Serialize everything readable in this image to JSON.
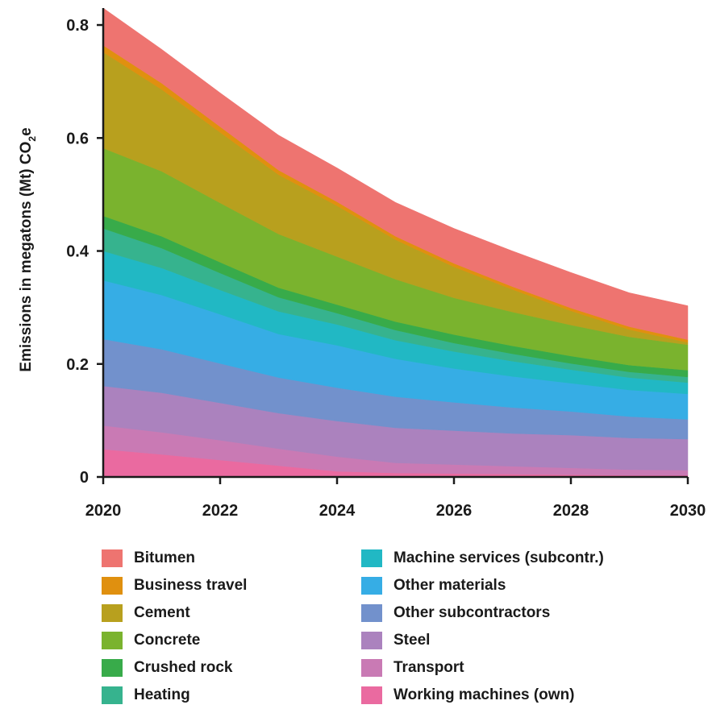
{
  "chart_data": {
    "type": "area",
    "stacked": true,
    "ylabel_main": "Emissions in megatons (Mt) CO",
    "ylabel_sub": "2",
    "ylabel_tail": "e",
    "ylim": [
      0,
      0.83
    ],
    "xlim": [
      2020,
      2030
    ],
    "x_ticks": [
      "2020",
      "2022",
      "2024",
      "2026",
      "2028",
      "2030"
    ],
    "y_ticks": [
      {
        "value": 0,
        "label": "0"
      },
      {
        "value": 0.2,
        "label": "0.2"
      },
      {
        "value": 0.4,
        "label": "0.4"
      },
      {
        "value": 0.6,
        "label": "0.6"
      },
      {
        "value": 0.8,
        "label": "0.8"
      }
    ],
    "grid": false,
    "legend_position": "bottom",
    "x": [
      2020,
      2021,
      2022,
      2023,
      2024,
      2025,
      2026,
      2027,
      2028,
      2029,
      2030
    ],
    "series": [
      {
        "name": "Working machines (own)",
        "color": "#ea6aa0",
        "values": [
          0.049,
          0.04,
          0.03,
          0.02,
          0.01,
          0.007,
          0.006,
          0.005,
          0.004,
          0.003,
          0.003
        ]
      },
      {
        "name": "Transport",
        "color": "#c97ab4",
        "values": [
          0.042,
          0.039,
          0.035,
          0.03,
          0.026,
          0.018,
          0.016,
          0.014,
          0.012,
          0.01,
          0.009
        ]
      },
      {
        "name": "Steel",
        "color": "#ab82be",
        "values": [
          0.07,
          0.07,
          0.066,
          0.063,
          0.063,
          0.062,
          0.06,
          0.058,
          0.058,
          0.056,
          0.055
        ]
      },
      {
        "name": "Other subcontractors",
        "color": "#7291cc",
        "values": [
          0.083,
          0.077,
          0.07,
          0.063,
          0.059,
          0.055,
          0.05,
          0.046,
          0.042,
          0.038,
          0.035
        ]
      },
      {
        "name": "Other materials",
        "color": "#36ade5",
        "values": [
          0.104,
          0.096,
          0.087,
          0.077,
          0.075,
          0.067,
          0.06,
          0.055,
          0.05,
          0.047,
          0.045
        ]
      },
      {
        "name": "Machine services (subcontr.)",
        "color": "#21b8c4",
        "values": [
          0.052,
          0.048,
          0.043,
          0.04,
          0.037,
          0.033,
          0.03,
          0.027,
          0.024,
          0.022,
          0.02
        ]
      },
      {
        "name": "Heating",
        "color": "#36b38e",
        "values": [
          0.04,
          0.035,
          0.03,
          0.025,
          0.02,
          0.018,
          0.015,
          0.013,
          0.011,
          0.01,
          0.01
        ]
      },
      {
        "name": "Crushed rock",
        "color": "#38ab4a",
        "values": [
          0.022,
          0.021,
          0.019,
          0.017,
          0.015,
          0.015,
          0.015,
          0.014,
          0.013,
          0.012,
          0.012
        ]
      },
      {
        "name": "Concrete",
        "color": "#7ab32e",
        "values": [
          0.12,
          0.115,
          0.105,
          0.095,
          0.085,
          0.075,
          0.065,
          0.06,
          0.055,
          0.05,
          0.045
        ]
      },
      {
        "name": "Cement",
        "color": "#b8a01e",
        "values": [
          0.17,
          0.145,
          0.125,
          0.105,
          0.09,
          0.07,
          0.055,
          0.04,
          0.025,
          0.013,
          0.004
        ]
      },
      {
        "name": "Business travel",
        "color": "#e0900f",
        "values": [
          0.012,
          0.011,
          0.01,
          0.008,
          0.007,
          0.006,
          0.006,
          0.005,
          0.005,
          0.005,
          0.005
        ]
      },
      {
        "name": "Bitumen",
        "color": "#ee7470",
        "values": [
          0.066,
          0.06,
          0.06,
          0.062,
          0.06,
          0.06,
          0.062,
          0.063,
          0.063,
          0.06,
          0.06
        ]
      }
    ],
    "legend_columns": [
      [
        "Bitumen",
        "Business travel",
        "Cement",
        "Concrete",
        "Crushed rock",
        "Heating"
      ],
      [
        "Machine services (subcontr.)",
        "Other materials",
        "Other subcontractors",
        "Steel",
        "Transport",
        "Working machines (own)"
      ]
    ]
  }
}
